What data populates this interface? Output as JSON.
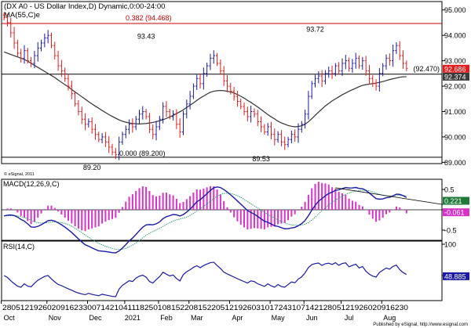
{
  "chart_data": {
    "type": "line",
    "main": {
      "title": "(DX A0 - US Dollar Index,D) Dynamic,0:00-24:00",
      "ma_label": "MA(55,C)e",
      "ylim": [
        88.95,
        95.3
      ],
      "ticks": [
        95,
        94,
        93,
        92,
        91,
        90,
        89
      ],
      "tick_labels": [
        "95.000",
        "94.000",
        "93.000",
        "92.000",
        "91.000",
        "90.000",
        "89.000"
      ],
      "fib_lines": [
        {
          "value": 94.468,
          "label": "0.382 (94.468)",
          "color": "#cc0000"
        },
        {
          "value": 92.47,
          "label": "(92.470)",
          "color": "#000000"
        },
        {
          "value": 89.2,
          "label": "0.000 (89.200)",
          "color": "#000000"
        }
      ],
      "annotations": [
        {
          "text": "93.43",
          "x": 42,
          "value": 93.43
        },
        {
          "text": "93.72",
          "x": 92,
          "value": 93.72
        },
        {
          "text": "89.20",
          "x": 26,
          "value": 89.2
        },
        {
          "text": "89.53",
          "x": 76,
          "value": 89.53
        }
      ],
      "price_labels": [
        {
          "text": "92.686",
          "value": 92.686,
          "bg": "#e41b1b",
          "fg": "#ffffff"
        },
        {
          "text": "92.374",
          "value": 92.374,
          "bg": "#3a3a3a",
          "fg": "#ffffff"
        }
      ],
      "close": [
        94.7,
        94.5,
        94.1,
        93.7,
        93.3,
        93.1,
        93.4,
        93.0,
        92.9,
        93.2,
        93.5,
        93.7,
        93.9,
        94.0,
        93.6,
        93.2,
        92.8,
        92.6,
        92.3,
        92.0,
        91.7,
        91.3,
        91.0,
        90.7,
        90.5,
        90.6,
        90.3,
        90.1,
        89.9,
        90.0,
        89.8,
        89.6,
        89.4,
        89.3,
        89.8,
        90.1,
        90.3,
        90.5,
        90.4,
        90.7,
        90.9,
        91.0,
        90.8,
        90.3,
        90.1,
        90.4,
        90.7,
        91.2,
        91.0,
        90.8,
        90.9,
        90.5,
        90.2,
        90.9,
        91.3,
        91.6,
        92.0,
        92.3,
        92.1,
        92.5,
        92.8,
        93.1,
        93.2,
        92.9,
        92.6,
        92.2,
        92.0,
        91.8,
        91.6,
        91.4,
        91.2,
        91.0,
        90.8,
        91.0,
        90.9,
        90.6,
        90.4,
        90.2,
        90.4,
        90.1,
        89.9,
        90.1,
        89.8,
        89.7,
        89.9,
        90.1,
        90.0,
        90.3,
        90.5,
        90.9,
        91.6,
        92.1,
        92.3,
        92.4,
        92.2,
        92.5,
        92.6,
        92.5,
        92.8,
        92.6,
        92.9,
        93.0,
        92.7,
        92.9,
        93.1,
        92.8,
        93.0,
        92.6,
        92.3,
        92.1,
        92.0,
        92.5,
        92.8,
        93.1,
        93.0,
        93.4,
        93.6,
        93.2,
        92.9,
        92.7
      ],
      "ma": [
        93.35,
        93.3,
        93.25,
        93.2,
        93.15,
        93.1,
        93.05,
        92.98,
        92.9,
        92.82,
        92.74,
        92.66,
        92.58,
        92.5,
        92.42,
        92.34,
        92.24,
        92.15,
        92.06,
        91.97,
        91.87,
        91.77,
        91.68,
        91.58,
        91.49,
        91.39,
        91.3,
        91.21,
        91.13,
        91.04,
        90.96,
        90.88,
        90.81,
        90.74,
        90.67,
        90.62,
        90.58,
        90.55,
        90.53,
        90.52,
        90.51,
        90.52,
        90.53,
        90.55,
        90.57,
        90.6,
        90.64,
        90.68,
        90.73,
        90.79,
        90.85,
        90.92,
        90.99,
        91.07,
        91.16,
        91.25,
        91.34,
        91.44,
        91.53,
        91.61,
        91.69,
        91.76,
        91.8,
        91.82,
        91.83,
        91.82,
        91.8,
        91.77,
        91.73,
        91.67,
        91.6,
        91.53,
        91.44,
        91.36,
        91.27,
        91.18,
        91.08,
        90.98,
        90.88,
        90.79,
        90.71,
        90.62,
        90.55,
        90.5,
        90.45,
        90.42,
        90.4,
        90.41,
        90.44,
        90.5,
        90.6,
        90.72,
        90.85,
        90.98,
        91.1,
        91.22,
        91.32,
        91.42,
        91.5,
        91.58,
        91.66,
        91.73,
        91.8,
        91.86,
        91.92,
        91.98,
        92.03,
        92.06,
        92.08,
        92.1,
        92.12,
        92.15,
        92.18,
        92.22,
        92.26,
        92.29,
        92.32,
        92.35,
        92.37,
        92.37
      ],
      "down_color": "#e41b1b",
      "up_color": "#1a1aa6",
      "ma_color": "#333333"
    },
    "macd": {
      "label": "MACD(12,26,9,C)",
      "ylim": [
        -0.75,
        0.75
      ],
      "ticks": [
        0.5,
        0,
        -0.5
      ],
      "tick_labels": [
        "0.5",
        "",
        "-0.5"
      ],
      "value_labels": [
        {
          "text": "0.221",
          "value": 0.221,
          "bg": "#1f7a3a",
          "fg": "#ffffff"
        },
        {
          "text": "-0.061",
          "value": -0.061,
          "bg": "#d733c9",
          "fg": "#ffffff"
        }
      ],
      "macd_color": "#1a1aa6",
      "signal_color": "#1f9a6a",
      "hist_color": "#d733c9",
      "trendline": {
        "from": [
          98,
          0.54
        ],
        "to": [
          127,
          0.13
        ]
      }
    },
    "rsi": {
      "label": "RSI(14,C)",
      "ylim": [
        10,
        105
      ],
      "ticks": [
        100,
        50
      ],
      "tick_labels": [
        "100",
        "50"
      ],
      "value_label": {
        "text": "48.885",
        "value": 48.885,
        "bg": "#1a1aa6",
        "fg": "#ffffff"
      },
      "color": "#1a1aa6"
    },
    "x_axis": {
      "day_labels": "2805121926020916233007142104111825010815220108152205121926031017243107142128051219260209162300",
      "day_labels_display": "28051219260209162330071421 0411182501081522010815220512192603101724310714212805121926020916230",
      "months": [
        {
          "label": "Oct",
          "x": 1.5
        },
        {
          "label": "Nov",
          "x": 15
        },
        {
          "label": "Dec",
          "x": 27
        },
        {
          "label": "2021",
          "x": 38
        },
        {
          "label": "Feb",
          "x": 48
        },
        {
          "label": "Mar",
          "x": 57
        },
        {
          "label": "Apr",
          "x": 69
        },
        {
          "label": "May",
          "x": 81
        },
        {
          "label": "Jun",
          "x": 91
        },
        {
          "label": "Jul",
          "x": 102
        },
        {
          "label": "Aug",
          "x": 114
        }
      ],
      "axis_text": "2805121926020916233007142104111825010815220815220512192603101724310714212805121926020916230"
    },
    "copyright": "© eSignal, 2011",
    "published": "Published by eSignal, http://www.esignal.com"
  }
}
